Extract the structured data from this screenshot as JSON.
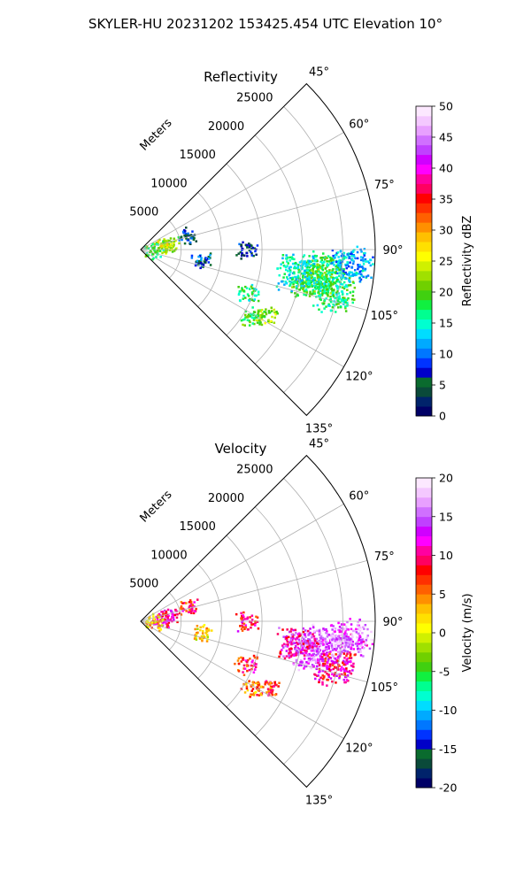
{
  "figure": {
    "suptitle": "SKYLER-HU  20231202  153425.454 UTC Elevation 10°"
  },
  "chart_data": [
    {
      "type": "heatmap",
      "title": "Reflectivity",
      "range_label": "Meters",
      "range_ticks": [
        5000,
        10000,
        15000,
        20000,
        25000
      ],
      "azimuth_ticks": [
        "45°",
        "60°",
        "75°",
        "90°",
        "105°",
        "120°",
        "135°"
      ],
      "azimuth_tick_values": [
        45,
        60,
        75,
        90,
        105,
        120,
        135
      ],
      "azimuth_range": [
        45,
        135
      ],
      "range_max": 29000,
      "grid": true,
      "colorbar": {
        "label": "Reflectivity dBZ",
        "ticks": [
          0,
          5,
          10,
          15,
          20,
          25,
          30,
          35,
          40,
          45,
          50
        ],
        "range": [
          0,
          50
        ],
        "colors": [
          "#000066",
          "#00236b",
          "#0a4a3a",
          "#0a6b2e",
          "#0000c8",
          "#0033ff",
          "#0077ff",
          "#00aaff",
          "#00ddff",
          "#00ffd0",
          "#00ff90",
          "#10f040",
          "#40d010",
          "#70d000",
          "#a0e000",
          "#d0f000",
          "#ffff00",
          "#ffe000",
          "#ffc000",
          "#ff9000",
          "#ff6000",
          "#ff3000",
          "#ff0000",
          "#ff0060",
          "#ff00a0",
          "#ff00ff",
          "#d000ff",
          "#c040ff",
          "#d070ff",
          "#e8a0ff",
          "#f4c8ff",
          "#fce8ff"
        ]
      },
      "echoes": [
        {
          "az": 90,
          "r": 13000,
          "v": 6
        },
        {
          "az": 96,
          "r": 23000,
          "v": 18
        },
        {
          "az": 100,
          "r": 21500,
          "v": 20
        },
        {
          "az": 103,
          "r": 24500,
          "v": 17
        },
        {
          "az": 94,
          "r": 26000,
          "v": 12
        },
        {
          "az": 98,
          "r": 19500,
          "v": 15
        },
        {
          "az": 112,
          "r": 14000,
          "v": 17
        },
        {
          "az": 121,
          "r": 16000,
          "v": 19
        },
        {
          "az": 118,
          "r": 17500,
          "v": 22
        },
        {
          "az": 72,
          "r": 6000,
          "v": 7
        },
        {
          "az": 78,
          "r": 3500,
          "v": 22
        },
        {
          "az": 100,
          "r": 7500,
          "v": 8
        },
        {
          "az": 84,
          "r": 2500,
          "v": 25
        },
        {
          "az": 92,
          "r": 1500,
          "v": 18
        }
      ]
    },
    {
      "type": "heatmap",
      "title": "Velocity",
      "range_label": "Meters",
      "range_ticks": [
        5000,
        10000,
        15000,
        20000,
        25000
      ],
      "azimuth_ticks": [
        "45°",
        "60°",
        "75°",
        "90°",
        "105°",
        "120°",
        "135°"
      ],
      "azimuth_tick_values": [
        45,
        60,
        75,
        90,
        105,
        120,
        135
      ],
      "azimuth_range": [
        45,
        135
      ],
      "range_max": 29000,
      "grid": true,
      "colorbar": {
        "label": "Velocity (m/s)",
        "ticks": [
          -20,
          -15,
          -10,
          -5,
          0,
          5,
          10,
          15,
          20
        ],
        "range": [
          -20,
          20
        ],
        "colors": [
          "#000066",
          "#00236b",
          "#0a4a3a",
          "#0a6b2e",
          "#0000c8",
          "#0033ff",
          "#0077ff",
          "#00aaff",
          "#00ddff",
          "#00ffd0",
          "#00ff90",
          "#10f040",
          "#40d010",
          "#70d000",
          "#a0e000",
          "#d0f000",
          "#ffff00",
          "#ffe000",
          "#ffc000",
          "#ff9000",
          "#ff6000",
          "#ff3000",
          "#ff0000",
          "#ff0060",
          "#ff00a0",
          "#ff00ff",
          "#d000ff",
          "#c040ff",
          "#d070ff",
          "#e8a0ff",
          "#f4c8ff",
          "#fce8ff"
        ]
      },
      "echoes": [
        {
          "az": 90,
          "r": 13000,
          "v": 9
        },
        {
          "az": 96,
          "r": 23000,
          "v": 16
        },
        {
          "az": 100,
          "r": 21500,
          "v": 15
        },
        {
          "az": 103,
          "r": 24500,
          "v": 10
        },
        {
          "az": 94,
          "r": 26000,
          "v": 15
        },
        {
          "az": 98,
          "r": 19500,
          "v": 12
        },
        {
          "az": 112,
          "r": 14000,
          "v": 8
        },
        {
          "az": 121,
          "r": 16000,
          "v": 5
        },
        {
          "az": 118,
          "r": 17500,
          "v": 7
        },
        {
          "az": 72,
          "r": 6000,
          "v": 8
        },
        {
          "az": 78,
          "r": 3500,
          "v": 11
        },
        {
          "az": 100,
          "r": 7500,
          "v": 2
        },
        {
          "az": 84,
          "r": 2500,
          "v": 10
        },
        {
          "az": 92,
          "r": 1500,
          "v": 3
        }
      ]
    }
  ]
}
